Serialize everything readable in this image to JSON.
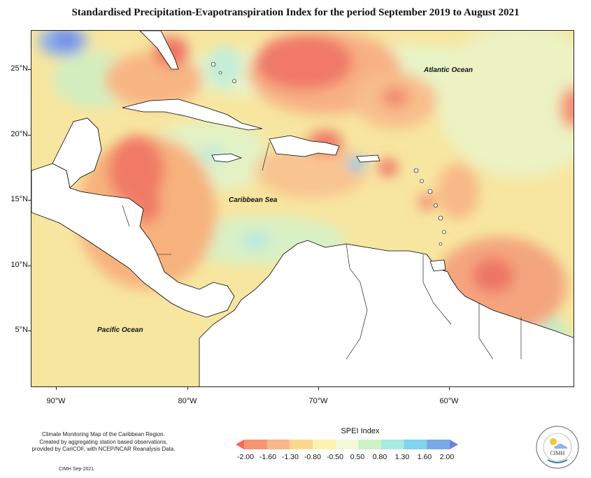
{
  "title": "Standardised Precipitation-Evapotranspiration Index for the period September 2019 to August 2021",
  "lat_labels": [
    "25°N",
    "20°N",
    "15°N",
    "10°N",
    "5°N"
  ],
  "lon_labels": [
    "90°W",
    "80°W",
    "70°W",
    "60°W"
  ],
  "ocean_labels": {
    "atlantic": "Atlantic Ocean",
    "caribbean": "Caribbean Sea",
    "pacific": "Pacific Ocean"
  },
  "credits": {
    "line1": "Climate Monitoring Map of the Caribbean Region.",
    "line2": "Created by aggregating station based observations,",
    "line3": "provided by CariCOF, with NCEP/NCAR Reanalysis Data.",
    "date": "CIMH Sep-2021"
  },
  "legend": {
    "title": "SPEI Index",
    "ticks": [
      "-2.00",
      "-1.60",
      "-1.30",
      "-0.80",
      "-0.50",
      "0.50",
      "0.80",
      "1.30",
      "1.60",
      "2.00"
    ],
    "colors": [
      "#f26a5a",
      "#f59473",
      "#f8b78a",
      "#fbd98c",
      "#fdf2ae",
      "#f4f8d8",
      "#cdf2c4",
      "#a5ebdf",
      "#7fd3ee",
      "#7aa9e6",
      "#6c83e2"
    ]
  },
  "logo": {
    "name": "CIMH",
    "arc_text": "Caribbean Institute for Meteorology and Hydrology"
  }
}
